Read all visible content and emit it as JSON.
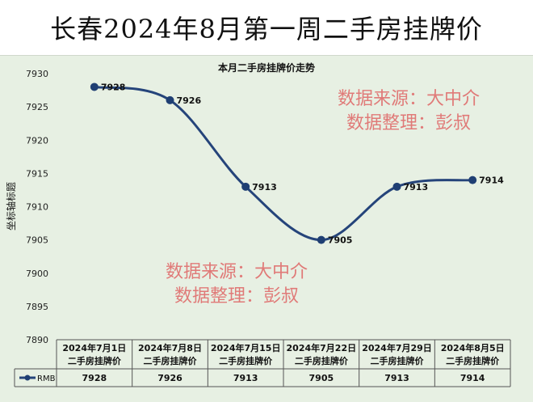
{
  "page_title": "长春2024年8月第一周二手房挂牌价",
  "watermark": {
    "source_line": "数据来源：大中介",
    "editor_line": "数据整理：彭叔"
  },
  "colors": {
    "line": "#25447a",
    "marker": "#1f3f73",
    "watermark": "#e07a78"
  },
  "chart_data": {
    "type": "line",
    "title": "本月二手房挂牌价走势",
    "xlabel": "",
    "ylabel": "坐标轴标题",
    "ylim": [
      7890,
      7930
    ],
    "yticks": [
      7890,
      7895,
      7900,
      7905,
      7910,
      7915,
      7920,
      7925,
      7930
    ],
    "categories": [
      "2024年7月1日 二手房挂牌价",
      "2024年7月8日 二手房挂牌价",
      "2024年7月15日 二手房挂牌价",
      "2024年7月22日 二手房挂牌价",
      "2024年7月29日 二手房挂牌价",
      "2024年8月5日 二手房挂牌价"
    ],
    "category_lines": [
      [
        "2024年7月1日",
        "二手房挂牌价"
      ],
      [
        "2024年7月8日",
        "二手房挂牌价"
      ],
      [
        "2024年7月15日",
        "二手房挂牌价"
      ],
      [
        "2024年7月22日",
        "二手房挂牌价"
      ],
      [
        "2024年7月29日",
        "二手房挂牌价"
      ],
      [
        "2024年8月5日",
        "二手房挂牌价"
      ]
    ],
    "series": [
      {
        "name": "RMB",
        "values": [
          7928,
          7926,
          7913,
          7905,
          7913,
          7914
        ]
      }
    ],
    "data_table": true,
    "grid": false
  }
}
